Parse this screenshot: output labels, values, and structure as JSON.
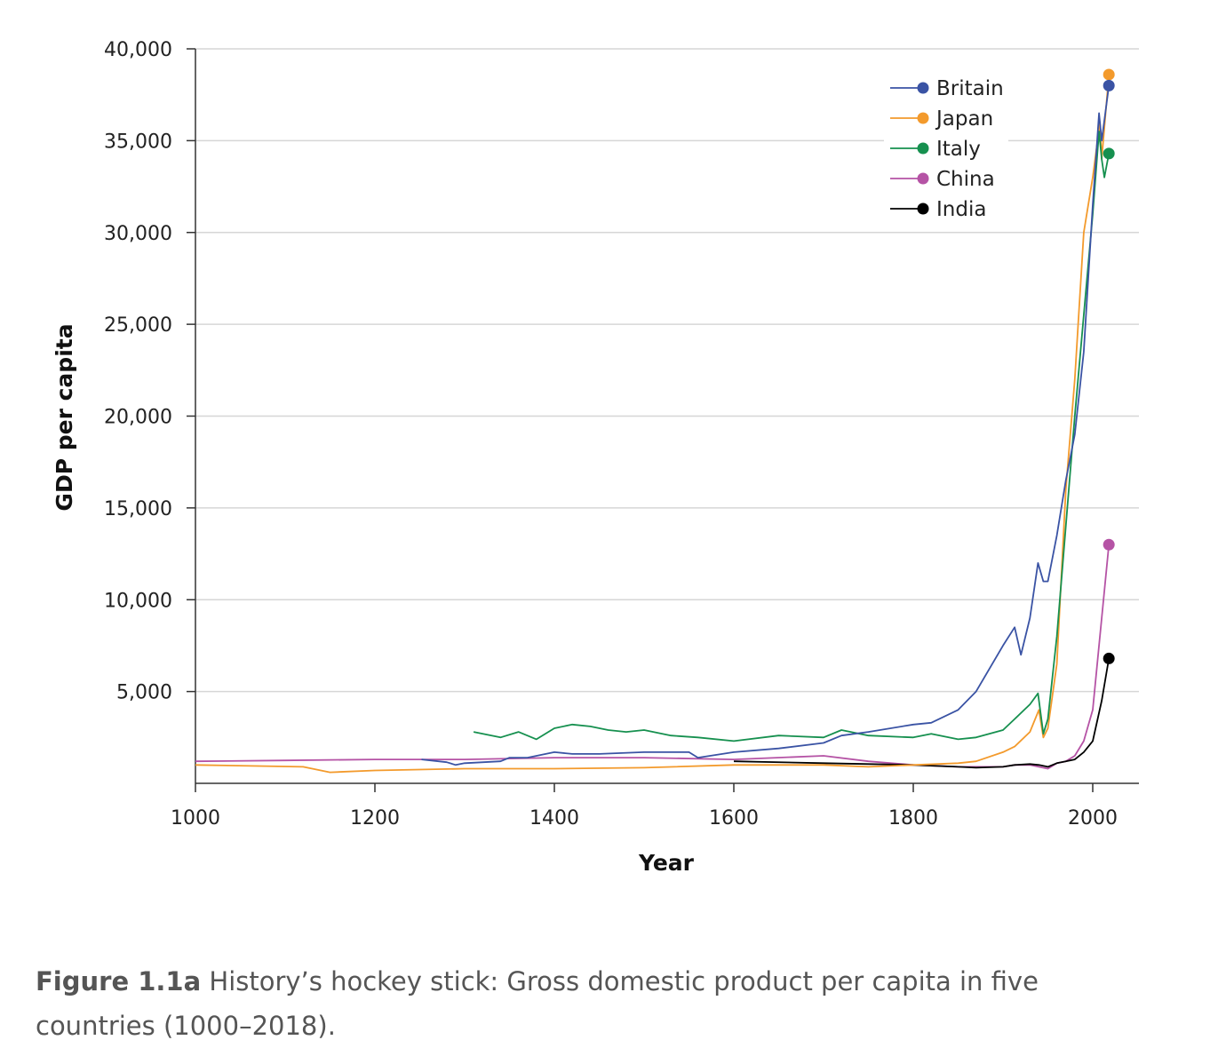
{
  "chart_data": {
    "type": "line",
    "title": "",
    "xlabel": "Year",
    "ylabel": "GDP per capita",
    "xlim": [
      1000,
      2050
    ],
    "ylim": [
      0,
      40000
    ],
    "x_ticks": [
      1000,
      1200,
      1400,
      1600,
      1800,
      2000
    ],
    "y_ticks": [
      5000,
      10000,
      15000,
      20000,
      25000,
      30000,
      35000,
      40000
    ],
    "x_tick_labels": [
      "1000",
      "1200",
      "1400",
      "1600",
      "1800",
      "2000"
    ],
    "y_tick_labels": [
      "5,000",
      "10,000",
      "15,000",
      "20,000",
      "25,000",
      "30,000",
      "35,000",
      "40,000"
    ],
    "grid": "horizontal",
    "legend": "top-right",
    "series": [
      {
        "name": "Britain",
        "color": "#3a53a4",
        "x": [
          1252,
          1280,
          1290,
          1300,
          1340,
          1350,
          1370,
          1400,
          1420,
          1450,
          1500,
          1550,
          1560,
          1600,
          1650,
          1700,
          1720,
          1750,
          1800,
          1820,
          1850,
          1870,
          1900,
          1913,
          1920,
          1930,
          1939,
          1945,
          1950,
          1960,
          1970,
          1980,
          1990,
          2000,
          2007,
          2010,
          2018
        ],
        "y": [
          1300,
          1150,
          1000,
          1100,
          1200,
          1400,
          1400,
          1700,
          1600,
          1600,
          1700,
          1700,
          1400,
          1700,
          1900,
          2200,
          2600,
          2800,
          3200,
          3300,
          4000,
          5000,
          7500,
          8500,
          7000,
          9000,
          12000,
          11000,
          11000,
          13500,
          16500,
          19000,
          23500,
          31500,
          36500,
          35000,
          38000
        ]
      },
      {
        "name": "Japan",
        "color": "#f39a2c",
        "x": [
          1000,
          1120,
          1150,
          1200,
          1300,
          1400,
          1500,
          1600,
          1700,
          1750,
          1800,
          1850,
          1870,
          1900,
          1913,
          1930,
          1940,
          1945,
          1950,
          1960,
          1970,
          1980,
          1990,
          2000,
          2008,
          2010,
          2018
        ],
        "y": [
          1000,
          900,
          600,
          700,
          800,
          800,
          850,
          1000,
          1000,
          900,
          1000,
          1100,
          1200,
          1700,
          2000,
          2800,
          4000,
          2500,
          3000,
          6500,
          16000,
          22000,
          30000,
          33000,
          36000,
          34000,
          38600
        ]
      },
      {
        "name": "Italy",
        "color": "#16904f",
        "x": [
          1310,
          1340,
          1360,
          1380,
          1400,
          1420,
          1440,
          1460,
          1480,
          1500,
          1530,
          1560,
          1600,
          1650,
          1700,
          1720,
          1750,
          1800,
          1820,
          1850,
          1870,
          1900,
          1913,
          1930,
          1939,
          1945,
          1950,
          1960,
          1970,
          1980,
          1990,
          2000,
          2007,
          2010,
          2013,
          2018
        ],
        "y": [
          2800,
          2500,
          2800,
          2400,
          3000,
          3200,
          3100,
          2900,
          2800,
          2900,
          2600,
          2500,
          2300,
          2600,
          2500,
          2900,
          2600,
          2500,
          2700,
          2400,
          2500,
          2900,
          3500,
          4300,
          4900,
          2700,
          3500,
          8000,
          14000,
          20000,
          25500,
          31000,
          35500,
          34000,
          33000,
          34300
        ]
      },
      {
        "name": "China",
        "color": "#b553a5",
        "x": [
          1000,
          1100,
          1200,
          1300,
          1400,
          1500,
          1600,
          1700,
          1750,
          1800,
          1850,
          1870,
          1900,
          1913,
          1930,
          1950,
          1960,
          1970,
          1980,
          1990,
          2000,
          2010,
          2018
        ],
        "y": [
          1200,
          1250,
          1300,
          1300,
          1400,
          1400,
          1300,
          1500,
          1200,
          1000,
          900,
          900,
          900,
          1000,
          1000,
          800,
          1100,
          1200,
          1500,
          2300,
          4000,
          9000,
          13000
        ]
      },
      {
        "name": "India",
        "color": "#000000",
        "x": [
          1600,
          1700,
          1800,
          1850,
          1870,
          1900,
          1913,
          1930,
          1940,
          1950,
          1960,
          1970,
          1980,
          1990,
          2000,
          2010,
          2018
        ],
        "y": [
          1200,
          1100,
          1000,
          900,
          850,
          900,
          1000,
          1050,
          1000,
          900,
          1100,
          1200,
          1300,
          1700,
          2300,
          4500,
          6800
        ]
      }
    ]
  },
  "caption": {
    "label": "Figure 1.1a",
    "text": " History’s hockey stick: Gross domestic product per capita in five countries (1000–2018)."
  }
}
